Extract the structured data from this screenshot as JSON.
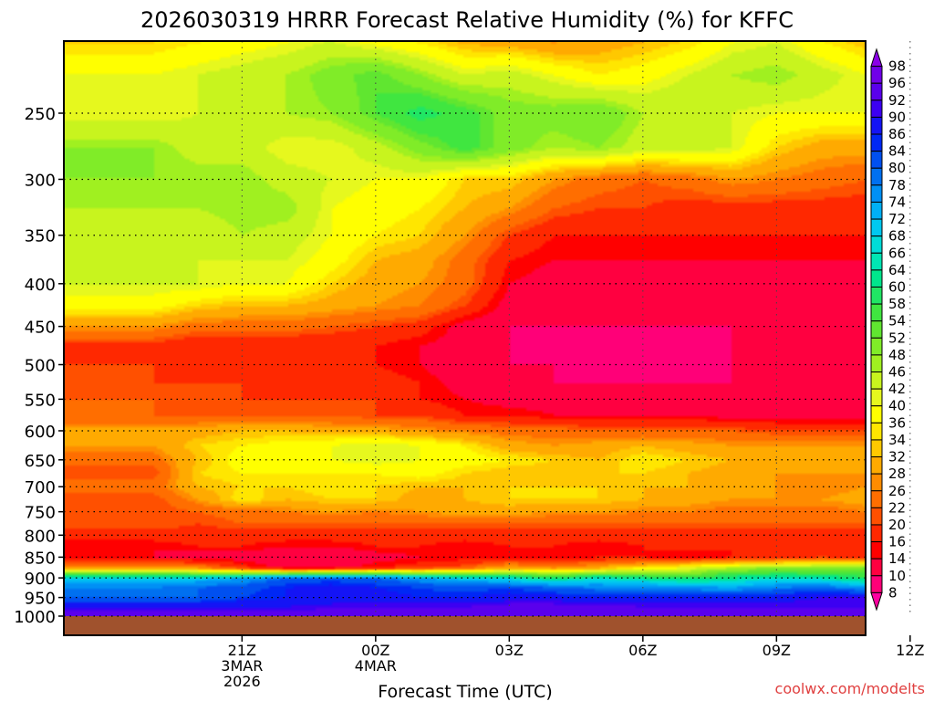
{
  "chart_data": {
    "type": "heatmap",
    "title": "2026030319 HRRR Forecast Relative Humidity (%) for KFFC",
    "xlabel": "Forecast Time (UTC)",
    "ylabel": "",
    "credit": "coolwx.com/modelts",
    "x_hours": [
      0,
      1,
      2,
      3,
      4,
      5,
      6,
      7,
      8,
      9,
      10,
      11,
      12,
      13,
      14,
      15,
      16,
      17,
      18
    ],
    "xlim": [
      -2.0,
      16.0
    ],
    "x_ticks": [
      {
        "hour": 2,
        "lines": [
          "21Z",
          "3MAR",
          "2026"
        ]
      },
      {
        "hour": 5,
        "lines": [
          "00Z",
          "4MAR"
        ]
      },
      {
        "hour": 8,
        "lines": [
          "03Z"
        ]
      },
      {
        "hour": 11,
        "lines": [
          "06Z"
        ]
      },
      {
        "hour": 14,
        "lines": [
          "09Z"
        ]
      },
      {
        "hour": 17,
        "lines": [
          "12Z"
        ]
      }
    ],
    "y_scale": "log-pressure",
    "ylim_hpa": [
      1018,
      200
    ],
    "pressure_levels": [
      1000,
      950,
      900,
      850,
      800,
      750,
      700,
      650,
      600,
      550,
      500,
      450,
      400,
      350,
      300,
      250
    ],
    "p_rows": [
      1000,
      975,
      950,
      925,
      900,
      875,
      850,
      825,
      800,
      775,
      750,
      725,
      700,
      675,
      650,
      625,
      600,
      575,
      550,
      525,
      500,
      475,
      450,
      425,
      400,
      375,
      350,
      325,
      300,
      275,
      250,
      225,
      200
    ],
    "rh": [
      [
        94,
        94,
        94,
        94,
        94,
        94,
        94,
        94,
        94,
        94,
        94,
        94,
        94,
        94,
        94,
        94,
        94,
        94,
        94
      ],
      [
        90,
        90,
        90,
        90,
        92,
        92,
        92,
        92,
        94,
        94,
        94,
        92,
        92,
        92,
        92,
        92,
        92,
        94,
        94
      ],
      [
        80,
        80,
        84,
        86,
        86,
        88,
        86,
        86,
        88,
        88,
        86,
        86,
        86,
        88,
        88,
        90,
        90,
        90,
        90
      ],
      [
        78,
        80,
        82,
        86,
        88,
        86,
        84,
        82,
        84,
        80,
        78,
        78,
        76,
        74,
        78,
        80,
        76,
        78,
        80
      ],
      [
        70,
        70,
        74,
        80,
        82,
        80,
        74,
        70,
        66,
        60,
        66,
        62,
        58,
        62,
        66,
        64,
        58,
        62,
        66
      ],
      [
        28,
        26,
        18,
        12,
        12,
        16,
        18,
        22,
        30,
        26,
        30,
        36,
        40,
        46,
        48,
        48,
        52,
        54,
        56
      ],
      [
        14,
        12,
        12,
        10,
        10,
        12,
        14,
        14,
        14,
        14,
        16,
        16,
        14,
        16,
        18,
        20,
        18,
        22,
        26
      ],
      [
        14,
        16,
        16,
        14,
        14,
        16,
        16,
        14,
        16,
        16,
        14,
        16,
        18,
        16,
        16,
        16,
        16,
        16,
        16
      ],
      [
        18,
        18,
        18,
        18,
        18,
        18,
        18,
        18,
        18,
        18,
        18,
        18,
        18,
        18,
        18,
        18,
        18,
        18,
        18
      ],
      [
        22,
        20,
        22,
        22,
        22,
        22,
        22,
        22,
        22,
        22,
        22,
        22,
        22,
        22,
        22,
        22,
        22,
        22,
        22
      ],
      [
        20,
        22,
        24,
        26,
        28,
        26,
        28,
        30,
        30,
        28,
        28,
        26,
        26,
        24,
        24,
        24,
        26,
        28,
        26
      ],
      [
        20,
        28,
        36,
        32,
        34,
        34,
        30,
        32,
        34,
        34,
        34,
        32,
        30,
        28,
        28,
        28,
        30,
        34,
        36
      ],
      [
        24,
        32,
        34,
        34,
        36,
        34,
        32,
        32,
        34,
        34,
        34,
        32,
        32,
        28,
        28,
        26,
        28,
        30,
        32
      ],
      [
        20,
        34,
        36,
        36,
        36,
        36,
        38,
        34,
        32,
        32,
        34,
        34,
        32,
        30,
        28,
        28,
        28,
        30,
        30
      ],
      [
        24,
        32,
        38,
        38,
        40,
        42,
        40,
        38,
        36,
        34,
        32,
        36,
        34,
        32,
        32,
        32,
        30,
        28,
        28
      ],
      [
        28,
        34,
        36,
        38,
        40,
        42,
        40,
        36,
        30,
        28,
        30,
        32,
        30,
        28,
        28,
        28,
        28,
        26,
        26
      ],
      [
        30,
        30,
        32,
        32,
        30,
        30,
        28,
        26,
        24,
        24,
        22,
        22,
        22,
        22,
        20,
        20,
        20,
        18,
        20
      ],
      [
        22,
        22,
        22,
        22,
        22,
        20,
        20,
        16,
        16,
        14,
        14,
        14,
        14,
        12,
        12,
        12,
        12,
        12,
        12
      ],
      [
        22,
        20,
        20,
        20,
        20,
        20,
        16,
        14,
        12,
        12,
        12,
        12,
        12,
        12,
        12,
        12,
        10,
        10,
        12
      ],
      [
        20,
        20,
        20,
        18,
        18,
        18,
        16,
        12,
        12,
        10,
        10,
        10,
        10,
        10,
        10,
        10,
        10,
        10,
        10
      ],
      [
        20,
        18,
        18,
        16,
        16,
        16,
        14,
        10,
        10,
        10,
        9,
        9,
        9,
        10,
        10,
        10,
        10,
        10,
        10
      ],
      [
        18,
        16,
        16,
        16,
        16,
        16,
        14,
        12,
        10,
        9,
        9,
        9,
        9,
        10,
        10,
        10,
        10,
        10,
        10
      ],
      [
        28,
        24,
        24,
        24,
        22,
        20,
        18,
        12,
        10,
        10,
        10,
        10,
        10,
        10,
        10,
        10,
        10,
        10,
        10
      ],
      [
        38,
        34,
        32,
        32,
        30,
        28,
        26,
        20,
        12,
        10,
        10,
        10,
        10,
        10,
        10,
        10,
        10,
        10,
        10
      ],
      [
        42,
        42,
        40,
        40,
        34,
        30,
        28,
        24,
        14,
        12,
        12,
        12,
        12,
        12,
        12,
        12,
        12,
        12,
        12
      ],
      [
        44,
        42,
        42,
        42,
        38,
        32,
        30,
        24,
        16,
        14,
        14,
        14,
        14,
        14,
        14,
        14,
        14,
        14,
        14
      ],
      [
        44,
        42,
        46,
        44,
        40,
        36,
        34,
        28,
        20,
        16,
        16,
        16,
        16,
        16,
        16,
        16,
        16,
        16,
        16
      ],
      [
        46,
        46,
        48,
        48,
        40,
        38,
        36,
        32,
        28,
        22,
        20,
        20,
        18,
        18,
        18,
        18,
        18,
        18,
        18
      ],
      [
        48,
        48,
        48,
        44,
        42,
        40,
        40,
        34,
        34,
        28,
        24,
        22,
        24,
        28,
        26,
        24,
        22,
        24,
        28
      ],
      [
        48,
        44,
        44,
        40,
        40,
        44,
        50,
        56,
        50,
        46,
        48,
        44,
        44,
        42,
        34,
        30,
        30,
        32,
        32
      ],
      [
        40,
        42,
        46,
        46,
        48,
        54,
        60,
        56,
        50,
        50,
        52,
        46,
        46,
        42,
        40,
        40,
        40,
        42,
        44
      ],
      [
        40,
        42,
        44,
        46,
        50,
        54,
        48,
        42,
        44,
        40,
        36,
        38,
        42,
        46,
        48,
        44,
        40,
        40,
        44
      ],
      [
        32,
        34,
        36,
        38,
        40,
        34,
        32,
        28,
        26,
        24,
        28,
        30,
        32,
        38,
        40,
        34,
        30,
        32,
        36
      ]
    ],
    "colorbar": {
      "levels": [
        98,
        96,
        92,
        90,
        86,
        84,
        80,
        78,
        74,
        72,
        68,
        66,
        64,
        60,
        58,
        54,
        52,
        48,
        46,
        42,
        40,
        36,
        34,
        32,
        28,
        26,
        22,
        20,
        16,
        14,
        10,
        8
      ],
      "colors": [
        "#8b00e6",
        "#7000e8",
        "#5a00ec",
        "#3c00f2",
        "#1414f5",
        "#0028f5",
        "#0050f0",
        "#0070f0",
        "#0090f5",
        "#00b0f5",
        "#00c8f0",
        "#00dcd8",
        "#00e6b4",
        "#00e68c",
        "#20e664",
        "#40e640",
        "#60e630",
        "#80ec28",
        "#a0f020",
        "#c8f41e",
        "#e6f81e",
        "#ffff00",
        "#ffe600",
        "#ffc800",
        "#ffaa00",
        "#ff8c00",
        "#ff6e00",
        "#ff5000",
        "#ff2800",
        "#ff0000",
        "#ff0040",
        "#ff0078",
        "#ff00a0"
      ]
    },
    "ground_color": "#a0522d",
    "grid": true
  }
}
